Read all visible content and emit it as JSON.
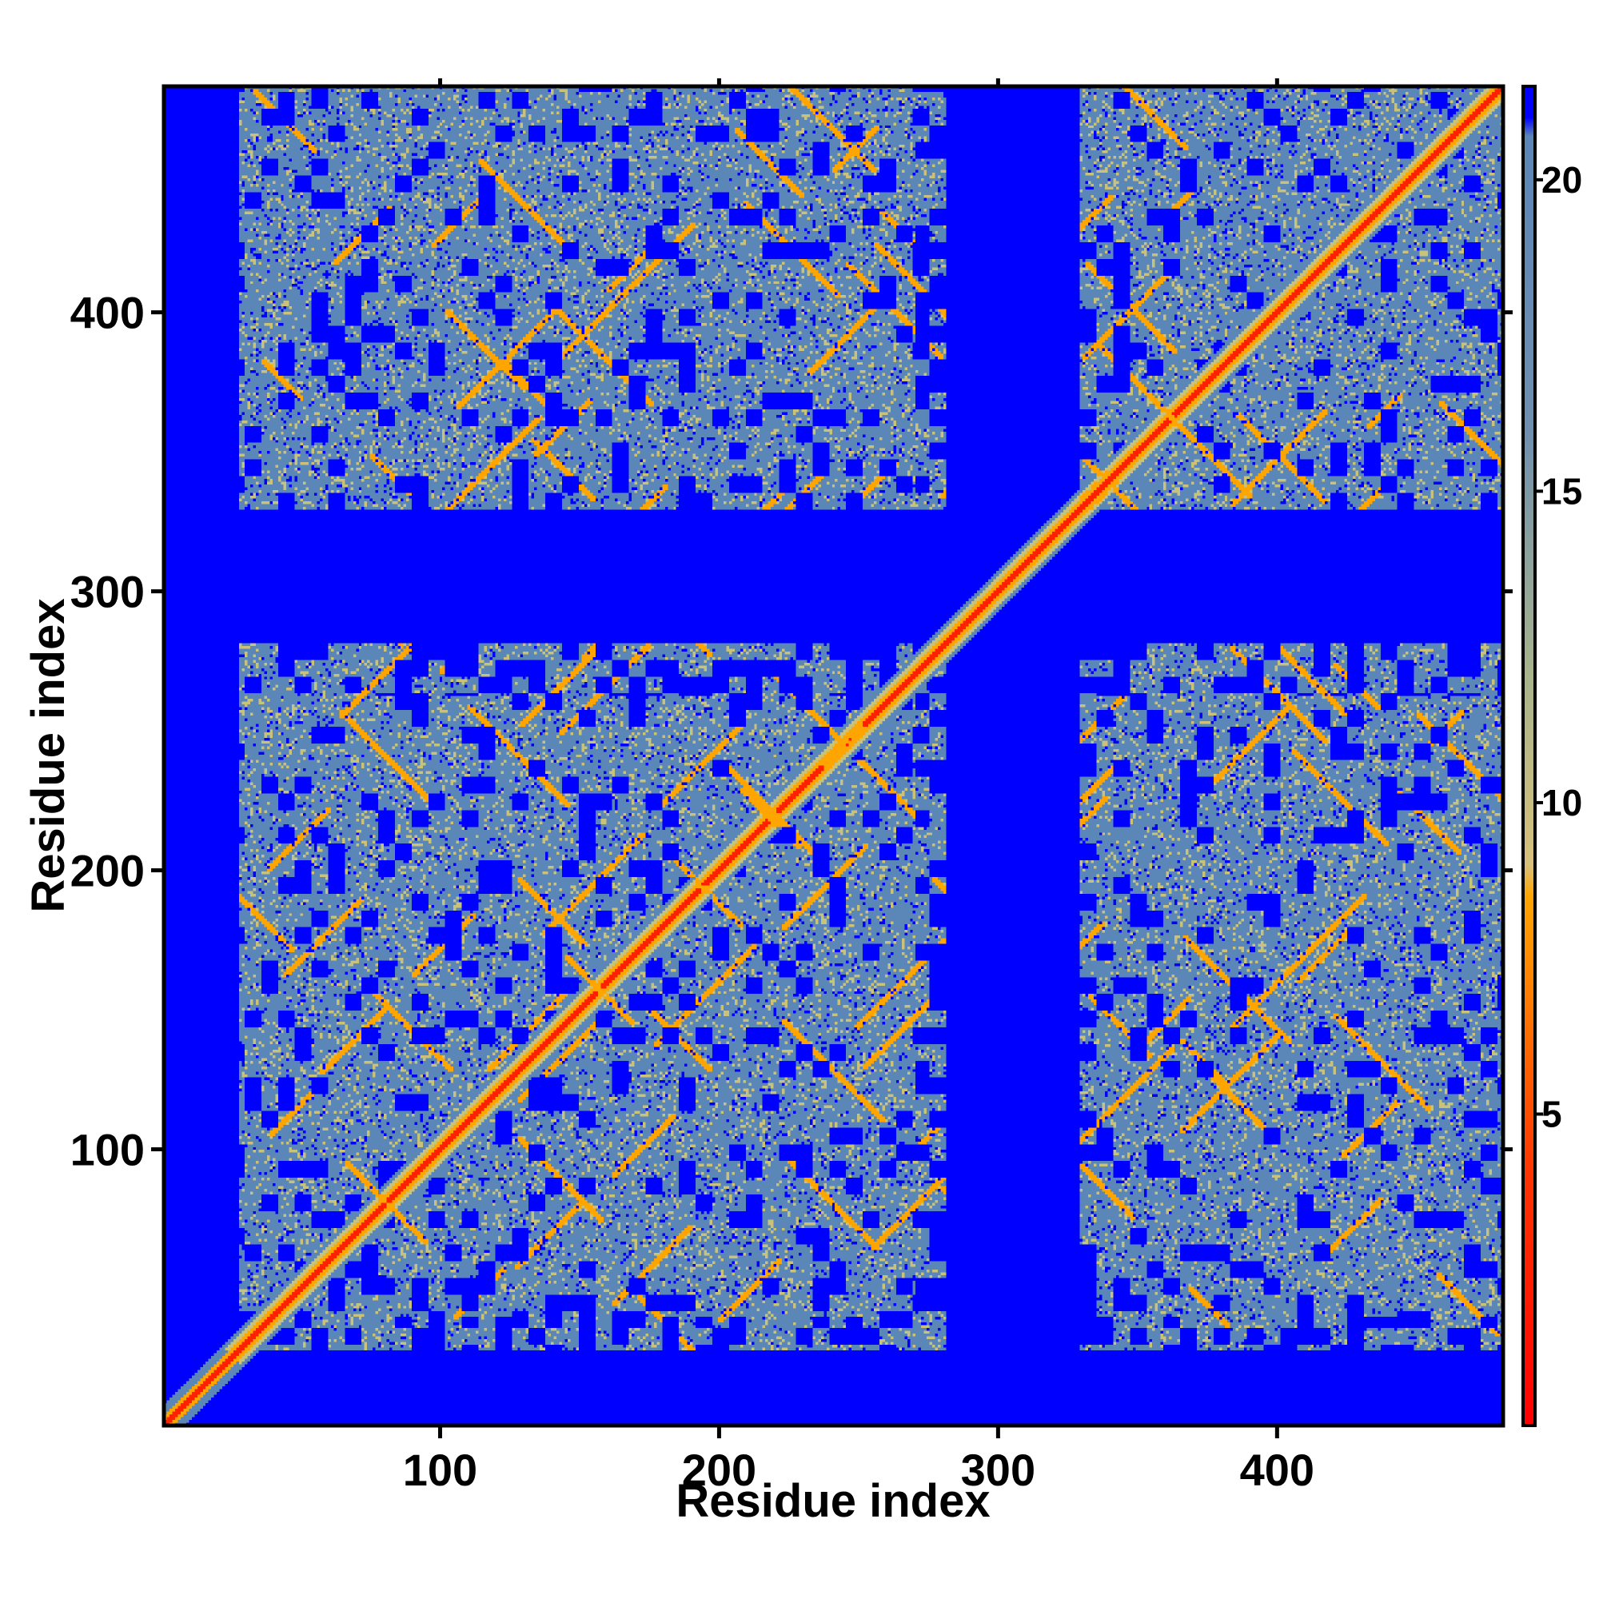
{
  "chart_data": {
    "type": "heatmap",
    "title": "",
    "xlabel": "Residue index",
    "ylabel": "Residue index",
    "xlim": [
      1,
      481
    ],
    "ylim": [
      1,
      481
    ],
    "x_ticks": [
      100,
      200,
      300,
      400
    ],
    "y_ticks": [
      100,
      200,
      300,
      400
    ],
    "colorbar": {
      "range": [
        0,
        21.5
      ],
      "ticks": [
        5,
        10,
        15,
        20
      ],
      "stops": [
        {
          "value": 0,
          "color": "#ff0000"
        },
        {
          "value": 4,
          "color": "#ff3300"
        },
        {
          "value": 8.5,
          "color": "#ffa500"
        },
        {
          "value": 9.0,
          "color": "#d8c07a"
        },
        {
          "value": 12,
          "color": "#a8b48a"
        },
        {
          "value": 16,
          "color": "#6f8fb0"
        },
        {
          "value": 20.7,
          "color": "#5b86b8"
        },
        {
          "value": 21,
          "color": "#0000ff"
        }
      ]
    },
    "domains": [
      [
        1,
        30
      ],
      [
        30,
        280
      ],
      [
        280,
        330
      ],
      [
        330,
        481
      ]
    ],
    "colors": {
      "far": "#0000ff",
      "mid": "#5b86b8",
      "near": "#c8c27a",
      "contact": "#ffa500",
      "diagonal": "#ff2000"
    }
  }
}
